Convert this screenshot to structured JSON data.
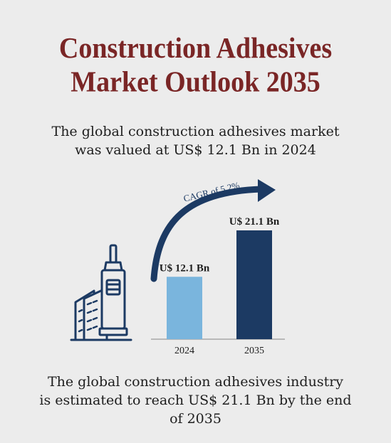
{
  "title": {
    "line1": "Construction Adhesives",
    "line2": "Market Outlook 2035"
  },
  "intro": {
    "line1": "The global construction adhesives market",
    "line2": "was valued at US$ 12.1 Bn in 2024"
  },
  "outro": {
    "line1": "The global construction adhesives industry",
    "line2": "is estimated to reach US$ 21.1 Bn by the end",
    "line3": "of 2035"
  },
  "chart_data": {
    "type": "bar",
    "categories": [
      "2024",
      "2035"
    ],
    "values": [
      12.1,
      21.1
    ],
    "data_labels": [
      "U$ 12.1 Bn",
      "U$ 21.1 Bn"
    ],
    "annotation": "CAGR of 5.2%",
    "colors": [
      "#7ab5dd",
      "#1c3a63"
    ],
    "ylim": [
      0,
      21.1
    ],
    "grid": false
  },
  "colors": {
    "title": "#7a2626",
    "text": "#1e1e1e",
    "icon_stroke": "#1c3a63",
    "background": "#ececec"
  },
  "icons": [
    "building-icon",
    "adhesive-tube-icon",
    "growth-arrow-icon"
  ]
}
